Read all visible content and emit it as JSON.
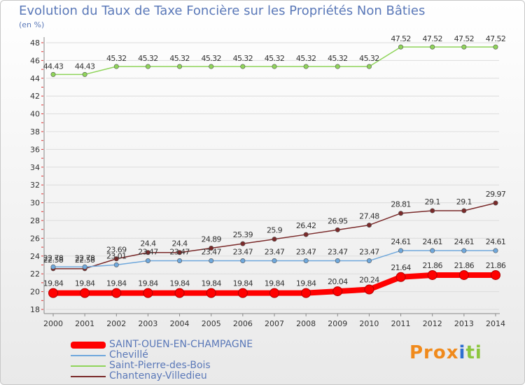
{
  "chart_data": {
    "type": "line",
    "title": "Evolution du Taux de Taxe Foncière sur les Propriétés Non Bâties",
    "ylabel": "(en %)",
    "xlabel": "",
    "ylim": [
      18,
      48
    ],
    "yticks": [
      18,
      20,
      22,
      24,
      26,
      28,
      30,
      32,
      34,
      36,
      38,
      40,
      42,
      44,
      46,
      48
    ],
    "categories": [
      "2000",
      "2001",
      "2002",
      "2003",
      "2004",
      "2005",
      "2006",
      "2007",
      "2008",
      "2009",
      "2010",
      "2011",
      "2012",
      "2013",
      "2014"
    ],
    "series": [
      {
        "name": "SAINT-OUEN-EN-CHAMPAGNE",
        "color": "#ff0000",
        "values": [
          19.84,
          19.84,
          19.84,
          19.84,
          19.84,
          19.84,
          19.84,
          19.84,
          19.84,
          20.04,
          20.24,
          21.64,
          21.86,
          21.86,
          21.86
        ]
      },
      {
        "name": "Chevillé",
        "color": "#6fa8dc",
        "values": [
          22.78,
          22.78,
          23.01,
          23.47,
          23.47,
          23.47,
          23.47,
          23.47,
          23.47,
          23.47,
          23.47,
          24.61,
          24.61,
          24.61,
          24.61
        ]
      },
      {
        "name": "Saint-Pierre-des-Bois",
        "color": "#8fd45a",
        "values": [
          44.43,
          44.43,
          45.32,
          45.32,
          45.32,
          45.32,
          45.32,
          45.32,
          45.32,
          45.32,
          45.32,
          47.52,
          47.52,
          47.52,
          47.52
        ]
      },
      {
        "name": "Chantenay-Villedieu",
        "color": "#7a2a2a",
        "values": [
          22.58,
          22.58,
          23.69,
          24.4,
          24.4,
          24.89,
          25.39,
          25.9,
          26.42,
          26.95,
          27.48,
          28.81,
          29.1,
          29.1,
          29.97
        ]
      }
    ]
  },
  "logo": {
    "text": "Prox",
    "mid": "i",
    "end": "ti"
  }
}
